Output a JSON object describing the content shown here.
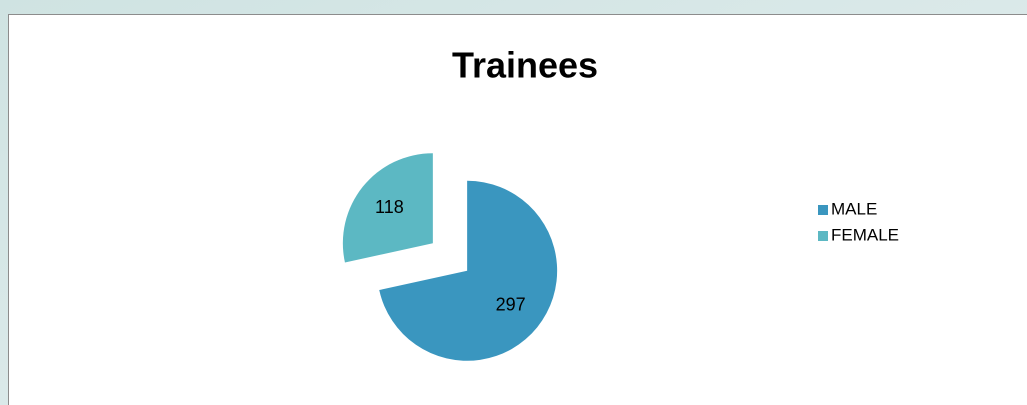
{
  "chart_data": {
    "type": "pie",
    "title": "Trainees",
    "categories": [
      "MALE",
      "FEMALE"
    ],
    "values": [
      297,
      118
    ],
    "colors": [
      "#3a96bf",
      "#5cb8c3"
    ],
    "legend": "right"
  }
}
